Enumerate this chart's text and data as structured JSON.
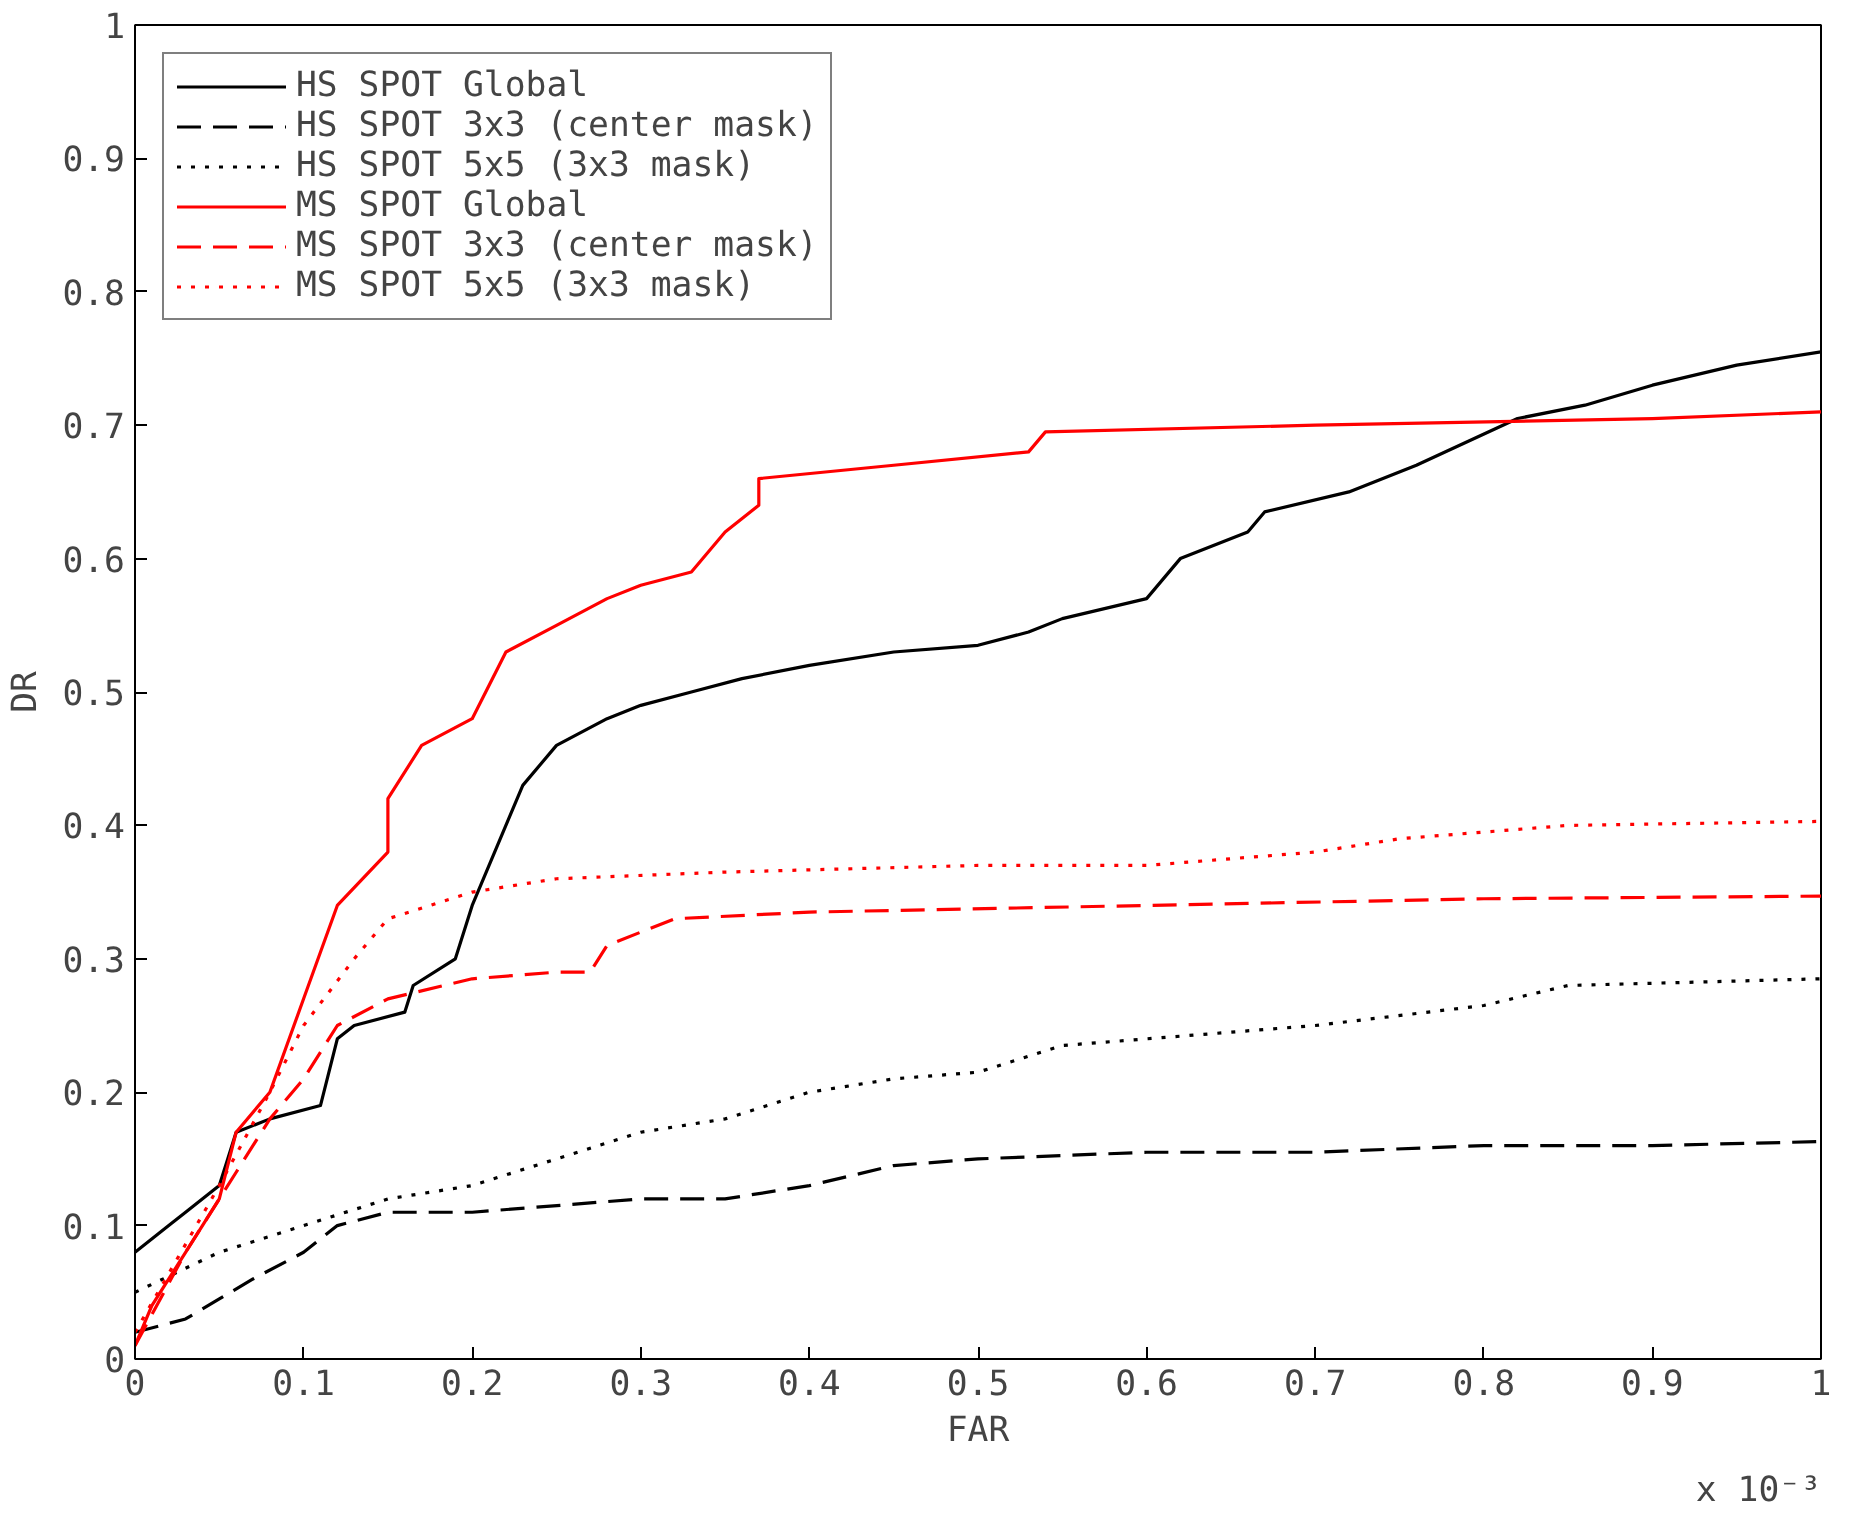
{
  "chart_data": {
    "type": "line",
    "xlabel": "FAR",
    "ylabel": "DR",
    "annotations": [
      "x 10⁻³"
    ],
    "xlim": [
      0,
      1
    ],
    "ylim": [
      0,
      1
    ],
    "xticks": [
      0,
      0.1,
      0.2,
      0.3,
      0.4,
      0.5,
      0.6,
      0.7,
      0.8,
      0.9,
      1
    ],
    "yticks": [
      0,
      0.1,
      0.2,
      0.3,
      0.4,
      0.5,
      0.6,
      0.7,
      0.8,
      0.9,
      1
    ],
    "grid": false,
    "legend": "top left",
    "marker": "none",
    "series": [
      {
        "name": "HS SPOT Global",
        "color": "#000000",
        "line_style": "solid",
        "x": [
          0,
          0.02,
          0.03,
          0.05,
          0.055,
          0.06,
          0.08,
          0.11,
          0.12,
          0.13,
          0.16,
          0.165,
          0.19,
          0.2,
          0.21,
          0.23,
          0.25,
          0.28,
          0.3,
          0.33,
          0.36,
          0.4,
          0.45,
          0.5,
          0.53,
          0.55,
          0.6,
          0.62,
          0.66,
          0.67,
          0.72,
          0.76,
          0.82,
          0.86,
          0.9,
          0.95,
          1
        ],
        "values": [
          0.08,
          0.1,
          0.11,
          0.13,
          0.15,
          0.17,
          0.18,
          0.19,
          0.24,
          0.25,
          0.26,
          0.28,
          0.3,
          0.34,
          0.37,
          0.43,
          0.46,
          0.48,
          0.49,
          0.5,
          0.51,
          0.52,
          0.53,
          0.535,
          0.545,
          0.555,
          0.57,
          0.6,
          0.62,
          0.635,
          0.65,
          0.67,
          0.705,
          0.715,
          0.73,
          0.745,
          0.755
        ]
      },
      {
        "name": "HS SPOT 3x3 (center mask)",
        "color": "#000000",
        "line_style": "dashed",
        "x": [
          0,
          0.03,
          0.05,
          0.07,
          0.1,
          0.12,
          0.15,
          0.2,
          0.3,
          0.35,
          0.4,
          0.45,
          0.5,
          0.6,
          0.7,
          0.8,
          0.9,
          1
        ],
        "values": [
          0.02,
          0.03,
          0.045,
          0.06,
          0.08,
          0.1,
          0.11,
          0.11,
          0.12,
          0.12,
          0.13,
          0.145,
          0.15,
          0.155,
          0.155,
          0.16,
          0.16,
          0.163
        ]
      },
      {
        "name": "HS SPOT 5x5 (3x3 mask)",
        "color": "#000000",
        "line_style": "dotted",
        "x": [
          0,
          0.05,
          0.1,
          0.15,
          0.2,
          0.25,
          0.3,
          0.35,
          0.4,
          0.45,
          0.5,
          0.55,
          0.6,
          0.7,
          0.8,
          0.85,
          1
        ],
        "values": [
          0.05,
          0.08,
          0.1,
          0.12,
          0.13,
          0.15,
          0.17,
          0.18,
          0.2,
          0.21,
          0.215,
          0.235,
          0.24,
          0.25,
          0.265,
          0.28,
          0.285
        ]
      },
      {
        "name": "MS SPOT Global",
        "color": "#ff0000",
        "line_style": "solid",
        "x": [
          0,
          0.01,
          0.03,
          0.05,
          0.06,
          0.08,
          0.1,
          0.12,
          0.15,
          0.15,
          0.17,
          0.2,
          0.22,
          0.25,
          0.28,
          0.3,
          0.33,
          0.35,
          0.37,
          0.37,
          0.45,
          0.53,
          0.54,
          0.7,
          0.9,
          1
        ],
        "values": [
          0.01,
          0.04,
          0.08,
          0.12,
          0.17,
          0.2,
          0.27,
          0.34,
          0.38,
          0.42,
          0.46,
          0.48,
          0.53,
          0.55,
          0.57,
          0.58,
          0.59,
          0.62,
          0.64,
          0.66,
          0.67,
          0.68,
          0.695,
          0.7,
          0.705,
          0.71
        ]
      },
      {
        "name": "MS SPOT 3x3 (center mask)",
        "color": "#ff0000",
        "line_style": "dashed",
        "x": [
          0,
          0.03,
          0.06,
          0.08,
          0.1,
          0.12,
          0.15,
          0.2,
          0.25,
          0.27,
          0.28,
          0.32,
          0.4,
          0.6,
          0.8,
          1
        ],
        "values": [
          0.01,
          0.08,
          0.14,
          0.18,
          0.21,
          0.25,
          0.27,
          0.285,
          0.29,
          0.29,
          0.31,
          0.33,
          0.335,
          0.34,
          0.345,
          0.347
        ]
      },
      {
        "name": "MS SPOT 5x5 (3x3 mask)",
        "color": "#ff0000",
        "line_style": "dotted",
        "x": [
          0,
          0.05,
          0.08,
          0.1,
          0.13,
          0.15,
          0.2,
          0.25,
          0.35,
          0.5,
          0.6,
          0.7,
          0.75,
          0.85,
          1
        ],
        "values": [
          0.02,
          0.13,
          0.2,
          0.25,
          0.3,
          0.33,
          0.35,
          0.36,
          0.365,
          0.37,
          0.37,
          0.38,
          0.39,
          0.4,
          0.403
        ]
      }
    ]
  }
}
